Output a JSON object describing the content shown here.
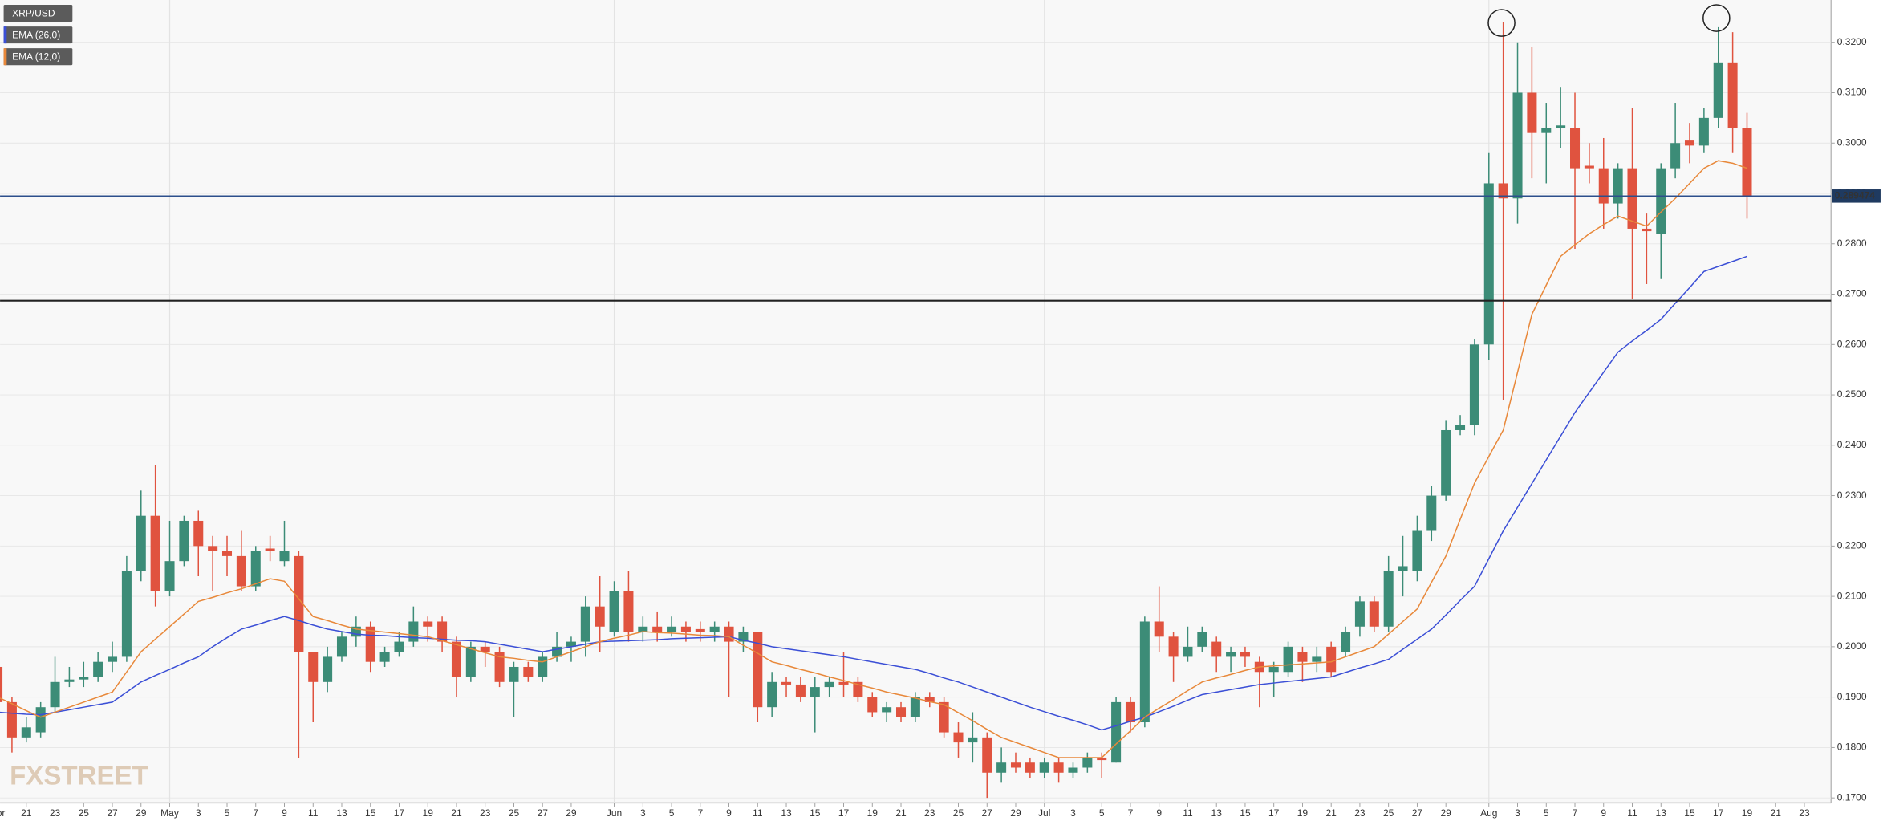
{
  "chart_data": {
    "type": "candlestick",
    "watermark": "FXSTREET",
    "grid": true,
    "ylim": [
      0.169,
      0.3284
    ],
    "yticks": [
      {
        "value": 0.17,
        "label": "0.1700"
      },
      {
        "value": 0.18,
        "label": "0.1800"
      },
      {
        "value": 0.19,
        "label": "0.1900"
      },
      {
        "value": 0.2,
        "label": "0.2000"
      },
      {
        "value": 0.21,
        "label": "0.2100"
      },
      {
        "value": 0.22,
        "label": "0.2200"
      },
      {
        "value": 0.23,
        "label": "0.2300"
      },
      {
        "value": 0.24,
        "label": "0.2400"
      },
      {
        "value": 0.25,
        "label": "0.2500"
      },
      {
        "value": 0.26,
        "label": "0.2600"
      },
      {
        "value": 0.27,
        "label": "0.2700"
      },
      {
        "value": 0.28,
        "label": "0.2800"
      },
      {
        "value": 0.29,
        "label": "0.2900"
      },
      {
        "value": 0.3,
        "label": "0.3000"
      },
      {
        "value": 0.31,
        "label": "0.3100"
      },
      {
        "value": 0.32,
        "label": "0.3200"
      }
    ],
    "price_line": {
      "value": 0.289474,
      "color": "#2d4f8c"
    },
    "support_line": {
      "value": 0.2687,
      "color": "#222222"
    },
    "categories": [
      "Apr",
      null,
      "21",
      null,
      "23",
      null,
      "25",
      null,
      "27",
      null,
      "29",
      null,
      "May",
      null,
      "3",
      null,
      "5",
      null,
      "7",
      null,
      "9",
      null,
      "11",
      null,
      "13",
      null,
      "15",
      null,
      "17",
      null,
      "19",
      null,
      "21",
      null,
      "23",
      null,
      "25",
      null,
      "27",
      null,
      "29",
      null,
      null,
      "Jun",
      null,
      "3",
      null,
      "5",
      null,
      "7",
      null,
      "9",
      null,
      "11",
      null,
      "13",
      null,
      "15",
      null,
      "17",
      null,
      "19",
      null,
      "21",
      null,
      "23",
      null,
      "25",
      null,
      "27",
      null,
      "29",
      null,
      "Jul",
      null,
      "3",
      null,
      "5",
      null,
      "7",
      null,
      "9",
      null,
      "11",
      null,
      "13",
      null,
      "15",
      null,
      "17",
      null,
      "19",
      null,
      "21",
      null,
      "23",
      null,
      "25",
      null,
      "27",
      null,
      "29",
      null,
      null,
      "Aug",
      null,
      "3",
      null,
      "5",
      null,
      "7",
      null,
      "9",
      null,
      "11",
      null,
      "13",
      null,
      "15",
      null,
      "17",
      null,
      "19",
      null,
      "21",
      null,
      "23"
    ],
    "series": [
      {
        "name": "XRP/USD",
        "up_color": "#3c8c77",
        "down_color": "#e0533f",
        "open": [
          0.196,
          0.189,
          0.182,
          0.183,
          0.188,
          0.193,
          0.1935,
          0.194,
          0.197,
          0.198,
          0.215,
          0.226,
          0.211,
          0.217,
          0.225,
          0.22,
          0.219,
          0.218,
          0.212,
          0.2195,
          0.217,
          0.218,
          0.199,
          0.193,
          0.198,
          0.202,
          0.204,
          0.197,
          0.199,
          0.201,
          0.205,
          0.205,
          0.201,
          0.194,
          0.2,
          0.199,
          0.193,
          0.196,
          0.194,
          0.198,
          0.2,
          0.201,
          0.208,
          0.203,
          0.211,
          0.203,
          0.204,
          0.203,
          0.204,
          0.2035,
          0.203,
          0.204,
          0.201,
          0.203,
          0.188,
          0.193,
          0.1925,
          0.19,
          0.192,
          0.193,
          0.193,
          0.19,
          0.187,
          0.188,
          0.186,
          0.19,
          0.189,
          0.183,
          0.181,
          0.182,
          0.175,
          0.177,
          0.177,
          0.175,
          0.177,
          0.175,
          0.176,
          0.178,
          0.177,
          0.189,
          0.185,
          0.205,
          0.202,
          0.198,
          0.2,
          0.201,
          0.198,
          0.199,
          0.197,
          0.195,
          0.195,
          0.199,
          0.197,
          0.2,
          0.199,
          0.204,
          0.209,
          0.204,
          0.215,
          0.215,
          0.223,
          0.23,
          0.243,
          0.244,
          0.26,
          0.292,
          0.289,
          0.31,
          0.302,
          0.303,
          0.303,
          0.2955,
          0.295,
          0.288,
          0.295,
          0.283,
          0.282,
          0.295,
          0.3005,
          0.2995,
          0.305,
          0.316,
          0.303,
          null,
          null,
          null,
          null
        ],
        "high": [
          0.197,
          0.19,
          0.186,
          0.189,
          0.198,
          0.196,
          0.197,
          0.199,
          0.201,
          0.218,
          0.231,
          0.236,
          0.225,
          0.226,
          0.227,
          0.222,
          0.222,
          0.223,
          0.22,
          0.222,
          0.225,
          0.219,
          0.199,
          0.2,
          0.203,
          0.206,
          0.205,
          0.2,
          0.203,
          0.208,
          0.206,
          0.206,
          0.202,
          0.201,
          0.201,
          0.2,
          0.197,
          0.197,
          0.199,
          0.203,
          0.202,
          0.21,
          0.214,
          0.213,
          0.215,
          0.206,
          0.207,
          0.206,
          0.205,
          0.205,
          0.205,
          0.205,
          0.204,
          0.203,
          0.195,
          0.194,
          0.194,
          0.194,
          0.194,
          0.199,
          0.194,
          0.191,
          0.189,
          0.189,
          0.191,
          0.191,
          0.19,
          0.185,
          0.187,
          0.183,
          0.18,
          0.179,
          0.178,
          0.178,
          0.178,
          0.177,
          0.179,
          0.179,
          0.19,
          0.19,
          0.206,
          0.212,
          0.203,
          0.204,
          0.204,
          0.202,
          0.2,
          0.2,
          0.198,
          0.197,
          0.201,
          0.2,
          0.2,
          0.201,
          0.204,
          0.21,
          0.21,
          0.218,
          0.222,
          0.226,
          0.232,
          0.245,
          0.246,
          0.261,
          0.298,
          0.324,
          0.32,
          0.319,
          0.308,
          0.311,
          0.31,
          0.3,
          0.301,
          0.296,
          0.307,
          0.286,
          0.296,
          0.308,
          0.304,
          0.307,
          0.323,
          0.322,
          0.306,
          null,
          null,
          null,
          null
        ],
        "low": [
          0.188,
          0.179,
          0.181,
          0.182,
          0.187,
          0.192,
          0.192,
          0.193,
          0.195,
          0.197,
          0.213,
          0.208,
          0.21,
          0.216,
          0.214,
          0.211,
          0.214,
          0.211,
          0.211,
          0.217,
          0.216,
          0.178,
          0.185,
          0.191,
          0.197,
          0.2,
          0.195,
          0.196,
          0.198,
          0.2,
          0.201,
          0.199,
          0.19,
          0.193,
          0.196,
          0.192,
          0.186,
          0.193,
          0.193,
          0.197,
          0.197,
          0.198,
          0.199,
          0.202,
          0.201,
          0.201,
          0.201,
          0.202,
          0.201,
          0.201,
          0.201,
          0.19,
          0.199,
          0.185,
          0.186,
          0.19,
          0.189,
          0.183,
          0.19,
          0.19,
          0.189,
          0.186,
          0.185,
          0.185,
          0.185,
          0.188,
          0.182,
          0.178,
          0.177,
          0.17,
          0.173,
          0.175,
          0.174,
          0.174,
          0.173,
          0.174,
          0.175,
          0.174,
          0.177,
          0.183,
          0.184,
          0.199,
          0.193,
          0.197,
          0.199,
          0.195,
          0.195,
          0.196,
          0.188,
          0.19,
          0.194,
          0.193,
          0.195,
          0.194,
          0.198,
          0.202,
          0.203,
          0.203,
          0.21,
          0.213,
          0.221,
          0.229,
          0.242,
          0.242,
          0.257,
          0.249,
          0.284,
          0.293,
          0.292,
          0.299,
          0.279,
          0.292,
          0.283,
          0.285,
          0.269,
          0.272,
          0.273,
          0.293,
          0.296,
          0.298,
          0.303,
          0.298,
          0.285,
          null,
          null,
          null,
          null
        ],
        "close": [
          0.189,
          0.182,
          0.184,
          0.188,
          0.193,
          0.1935,
          0.194,
          0.197,
          0.198,
          0.215,
          0.226,
          0.211,
          0.217,
          0.225,
          0.22,
          0.219,
          0.218,
          0.212,
          0.219,
          0.219,
          0.219,
          0.199,
          0.193,
          0.198,
          0.202,
          0.204,
          0.197,
          0.199,
          0.201,
          0.205,
          0.204,
          0.201,
          0.194,
          0.2,
          0.199,
          0.193,
          0.196,
          0.194,
          0.198,
          0.2,
          0.201,
          0.208,
          0.204,
          0.211,
          0.203,
          0.204,
          0.203,
          0.204,
          0.203,
          0.203,
          0.204,
          0.201,
          0.203,
          0.188,
          0.193,
          0.1925,
          0.19,
          0.192,
          0.193,
          0.1925,
          0.19,
          0.187,
          0.188,
          0.186,
          0.19,
          0.189,
          0.183,
          0.181,
          0.182,
          0.175,
          0.177,
          0.176,
          0.175,
          0.177,
          0.175,
          0.176,
          0.178,
          0.1775,
          0.189,
          0.185,
          0.205,
          0.202,
          0.198,
          0.2,
          0.203,
          0.198,
          0.199,
          0.198,
          0.195,
          0.196,
          0.2,
          0.197,
          0.198,
          0.195,
          0.203,
          0.209,
          0.204,
          0.215,
          0.216,
          0.223,
          0.23,
          0.243,
          0.244,
          0.26,
          0.292,
          0.289,
          0.31,
          0.302,
          0.303,
          0.3035,
          0.295,
          0.295,
          0.288,
          0.295,
          0.283,
          0.2825,
          0.295,
          0.3,
          0.2995,
          0.305,
          0.316,
          0.303,
          0.2895,
          null,
          null,
          null,
          null
        ]
      },
      {
        "name": "EMA (26,0)",
        "color": "#3b4fd6",
        "values": [
          0.187,
          0.1868,
          0.1866,
          0.1865,
          0.187,
          0.1875,
          0.188,
          0.1885,
          0.189,
          0.191,
          0.193,
          0.1943,
          0.1955,
          0.1968,
          0.198,
          0.2,
          0.2018,
          0.2035,
          0.2043,
          0.2052,
          0.206,
          0.2052,
          0.2043,
          0.2035,
          0.203,
          0.2025,
          0.2023,
          0.2022,
          0.202,
          0.2018,
          0.2017,
          0.2015,
          0.2013,
          0.2012,
          0.201,
          0.2005,
          0.2,
          0.1995,
          0.199,
          0.1995,
          0.2,
          0.2005,
          0.201,
          0.2011,
          0.2012,
          0.2013,
          0.2014,
          0.2016,
          0.2017,
          0.2018,
          0.2019,
          0.202,
          0.2013,
          0.2007,
          0.2,
          0.1996,
          0.1992,
          0.1988,
          0.1984,
          0.198,
          0.1975,
          0.197,
          0.1965,
          0.196,
          0.1955,
          0.1947,
          0.1938,
          0.193,
          0.192,
          0.191,
          0.19,
          0.189,
          0.188,
          0.1871,
          0.1862,
          0.1854,
          0.1845,
          0.1835,
          0.1843,
          0.1852,
          0.186,
          0.1871,
          0.1882,
          0.1894,
          0.1905,
          0.191,
          0.1915,
          0.192,
          0.1925,
          0.1928,
          0.1931,
          0.1934,
          0.1937,
          0.194,
          0.1949,
          0.1958,
          0.1966,
          0.1975,
          0.1995,
          0.2015,
          0.2035,
          0.2063,
          0.2092,
          0.212,
          0.2175,
          0.223,
          0.2277,
          0.2324,
          0.2371,
          0.2418,
          0.2465,
          0.2505,
          0.2545,
          0.2585,
          0.2607,
          0.2628,
          0.265,
          0.2682,
          0.2713,
          0.2745,
          0.2755,
          0.2765,
          0.2775,
          null,
          null,
          null,
          null
        ]
      },
      {
        "name": "EMA (12,0)",
        "color": "#e8883a",
        "values": [
          0.19,
          0.1887,
          0.1873,
          0.186,
          0.187,
          0.188,
          0.189,
          0.19,
          0.191,
          0.195,
          0.199,
          0.2015,
          0.204,
          0.2065,
          0.209,
          0.2098,
          0.2107,
          0.2115,
          0.2125,
          0.2135,
          0.213,
          0.2095,
          0.206,
          0.2052,
          0.2043,
          0.2035,
          0.2032,
          0.2029,
          0.2026,
          0.2023,
          0.202,
          0.2012,
          0.2004,
          0.1996,
          0.1988,
          0.198,
          0.1977,
          0.1973,
          0.197,
          0.198,
          0.199,
          0.2,
          0.201,
          0.2017,
          0.2023,
          0.203,
          0.2028,
          0.2027,
          0.2025,
          0.2023,
          0.2022,
          0.202,
          0.2003,
          0.1987,
          0.197,
          0.1963,
          0.1955,
          0.1948,
          0.194,
          0.1933,
          0.1925,
          0.1918,
          0.191,
          0.1904,
          0.1898,
          0.1891,
          0.1885,
          0.1869,
          0.1853,
          0.1836,
          0.182,
          0.181,
          0.18,
          0.179,
          0.178,
          0.178,
          0.178,
          0.178,
          0.1807,
          0.1833,
          0.186,
          0.1878,
          0.1895,
          0.1913,
          0.193,
          0.1938,
          0.1945,
          0.1953,
          0.196,
          0.1962,
          0.1964,
          0.1966,
          0.1968,
          0.197,
          0.198,
          0.199,
          0.2,
          0.2025,
          0.205,
          0.2075,
          0.2128,
          0.218,
          0.2253,
          0.2325,
          0.2378,
          0.243,
          0.2545,
          0.266,
          0.2718,
          0.2775,
          0.2798,
          0.282,
          0.2838,
          0.2855,
          0.2845,
          0.2835,
          0.2863,
          0.289,
          0.292,
          0.295,
          0.2965,
          0.296,
          0.295,
          null,
          null,
          null,
          null
        ]
      }
    ]
  }
}
